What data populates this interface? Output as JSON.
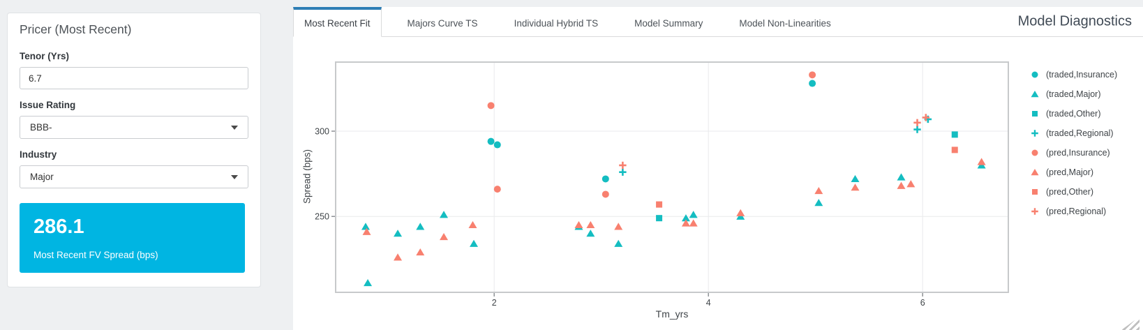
{
  "header": {
    "title": "Model Diagnostics"
  },
  "tabs": {
    "items": [
      "Most Recent Fit",
      "Majors Curve TS",
      "Individual Hybrid TS",
      "Model Summary",
      "Model Non-Linearities"
    ],
    "active_index": 0
  },
  "sidebar": {
    "title": "Pricer (Most Recent)",
    "tenor": {
      "label": "Tenor (Yrs)",
      "value": "6.7"
    },
    "issue_rating": {
      "label": "Issue Rating",
      "value": "BBB-"
    },
    "industry": {
      "label": "Industry",
      "value": "Major"
    },
    "result_card": {
      "value": "286.1",
      "label": "Most Recent FV Spread (bps)",
      "background": "#00b5e2"
    }
  },
  "colors": {
    "traded": "#14bdc1",
    "pred": "#f8806f",
    "active_tab_accent": "#2e7eb5",
    "result_card_bg": "#00b5e2"
  },
  "chart_data": {
    "type": "scatter",
    "title": "",
    "xlabel": "Tm_yrs",
    "ylabel": "Spread (bps)",
    "xlim": [
      0.52,
      6.8
    ],
    "ylim": [
      205.5,
      340.5
    ],
    "xticks": [
      2,
      4,
      6
    ],
    "yticks": [
      250,
      300
    ],
    "grid": true,
    "legend_position": "right",
    "series": [
      {
        "name": "(traded,Insurance)",
        "marker": "circle",
        "color": "#14bdc1",
        "points": [
          [
            1.97,
            294
          ],
          [
            2.03,
            292
          ],
          [
            3.04,
            272
          ],
          [
            4.97,
            328
          ]
        ]
      },
      {
        "name": "(traded,Major)",
        "marker": "triangle",
        "color": "#14bdc1",
        "points": [
          [
            0.8,
            244
          ],
          [
            0.82,
            211
          ],
          [
            1.1,
            240
          ],
          [
            1.31,
            244
          ],
          [
            1.53,
            251
          ],
          [
            1.81,
            234
          ],
          [
            2.79,
            244
          ],
          [
            2.9,
            240
          ],
          [
            3.16,
            234
          ],
          [
            3.79,
            249
          ],
          [
            3.86,
            251
          ],
          [
            4.3,
            250
          ],
          [
            5.03,
            258
          ],
          [
            5.37,
            272
          ],
          [
            5.8,
            273
          ],
          [
            6.55,
            280
          ]
        ]
      },
      {
        "name": "(traded,Other)",
        "marker": "square",
        "color": "#14bdc1",
        "points": [
          [
            3.54,
            249
          ],
          [
            6.3,
            298
          ]
        ]
      },
      {
        "name": "(traded,Regional)",
        "marker": "plus",
        "color": "#14bdc1",
        "points": [
          [
            3.2,
            276
          ],
          [
            5.95,
            301
          ],
          [
            6.05,
            307
          ]
        ]
      },
      {
        "name": "(pred,Insurance)",
        "marker": "circle",
        "color": "#f8806f",
        "points": [
          [
            1.97,
            315
          ],
          [
            2.03,
            266
          ],
          [
            3.04,
            263
          ],
          [
            4.97,
            333
          ]
        ]
      },
      {
        "name": "(pred,Major)",
        "marker": "triangle",
        "color": "#f8806f",
        "points": [
          [
            0.81,
            241
          ],
          [
            1.1,
            226
          ],
          [
            1.31,
            229
          ],
          [
            1.53,
            238
          ],
          [
            1.8,
            245
          ],
          [
            2.79,
            245
          ],
          [
            2.9,
            245
          ],
          [
            3.16,
            244
          ],
          [
            3.79,
            246
          ],
          [
            3.86,
            246
          ],
          [
            4.3,
            252
          ],
          [
            5.03,
            265
          ],
          [
            5.37,
            267
          ],
          [
            5.8,
            268
          ],
          [
            5.89,
            269
          ],
          [
            6.55,
            282
          ]
        ]
      },
      {
        "name": "(pred,Other)",
        "marker": "square",
        "color": "#f8806f",
        "points": [
          [
            3.54,
            257
          ],
          [
            6.3,
            289
          ]
        ]
      },
      {
        "name": "(pred,Regional)",
        "marker": "plus",
        "color": "#f8806f",
        "points": [
          [
            3.2,
            280
          ],
          [
            5.95,
            305
          ],
          [
            6.03,
            308
          ]
        ]
      }
    ]
  }
}
